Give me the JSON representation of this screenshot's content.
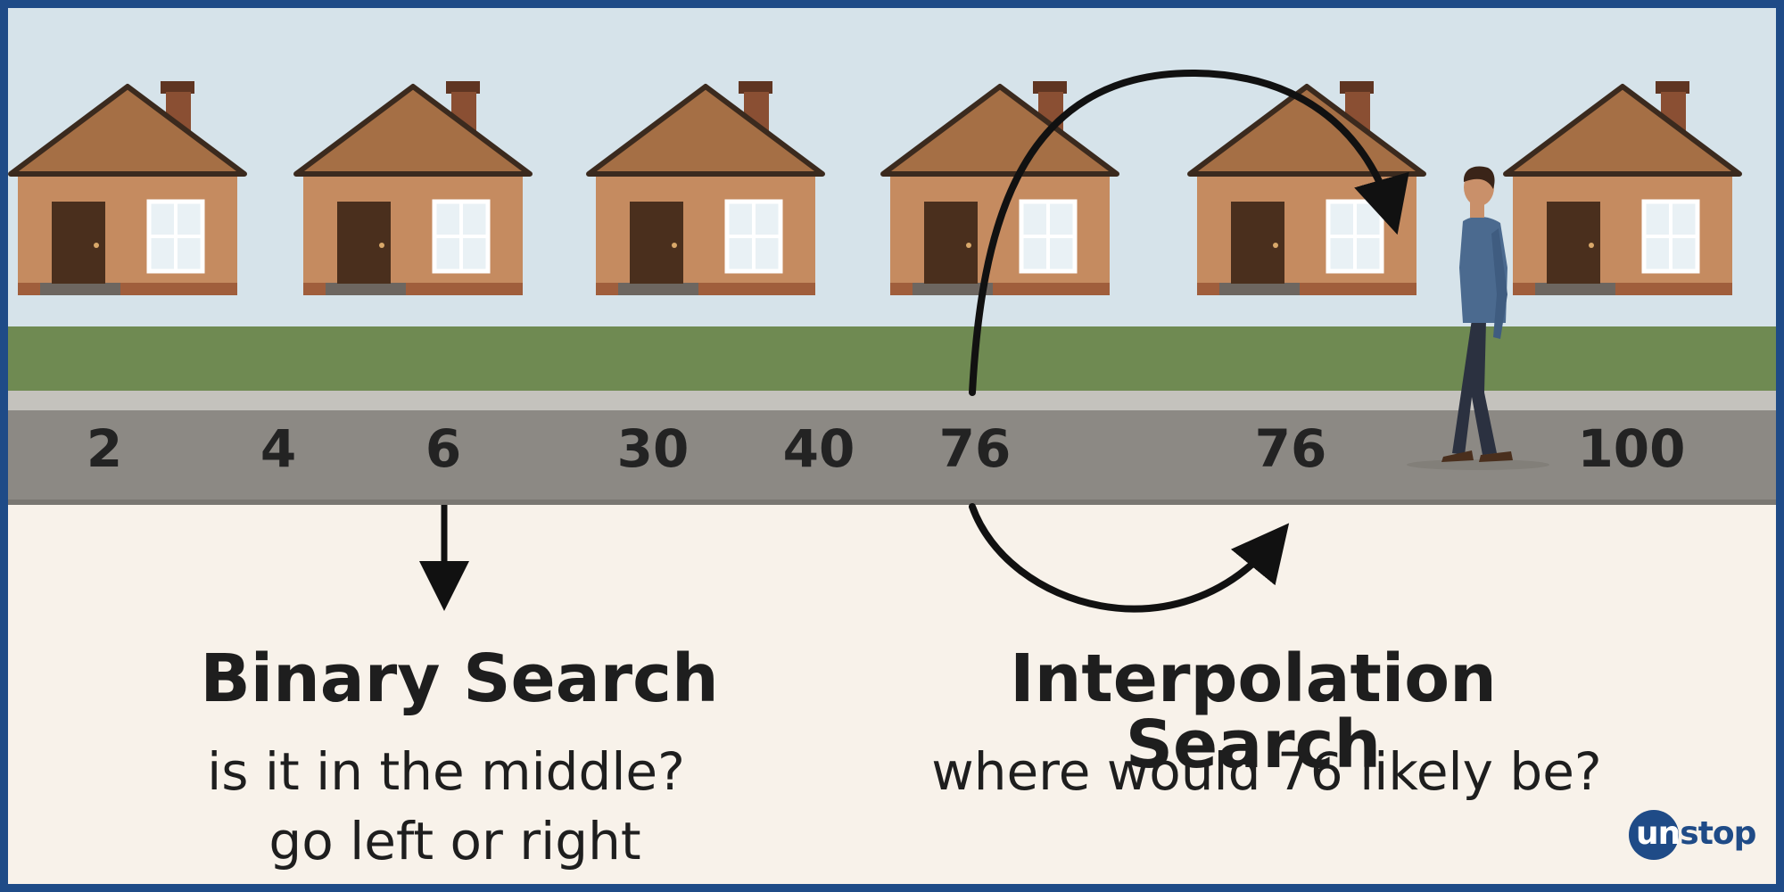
{
  "colors": {
    "frame": "#1f4b87",
    "sky": "#d6e3ea",
    "grass": "#6f8a52",
    "road": "#8c8984",
    "curb": "#c4c2bd",
    "house_wall": "#c58b60",
    "roof": "#a56f45",
    "roof_outline": "#3b2a1e",
    "door": "#4a2f1d",
    "window": "#e9f1f5",
    "chimney": "#8a4f33",
    "background": "#f8f2ea",
    "text": "#1e1e1e"
  },
  "road_numbers": [
    "2",
    "4",
    "6",
    "30",
    "40",
    "76",
    "76",
    "100"
  ],
  "binary": {
    "title": "Binary Search",
    "line1": "is it in the middle?",
    "line2": "go left or right"
  },
  "interpolation": {
    "title": "Interpolation Search",
    "line1": "where would 76 likely be?"
  },
  "logo": {
    "part1": "un",
    "part2": "stop",
    "icon": "unstop-logo-icon"
  }
}
